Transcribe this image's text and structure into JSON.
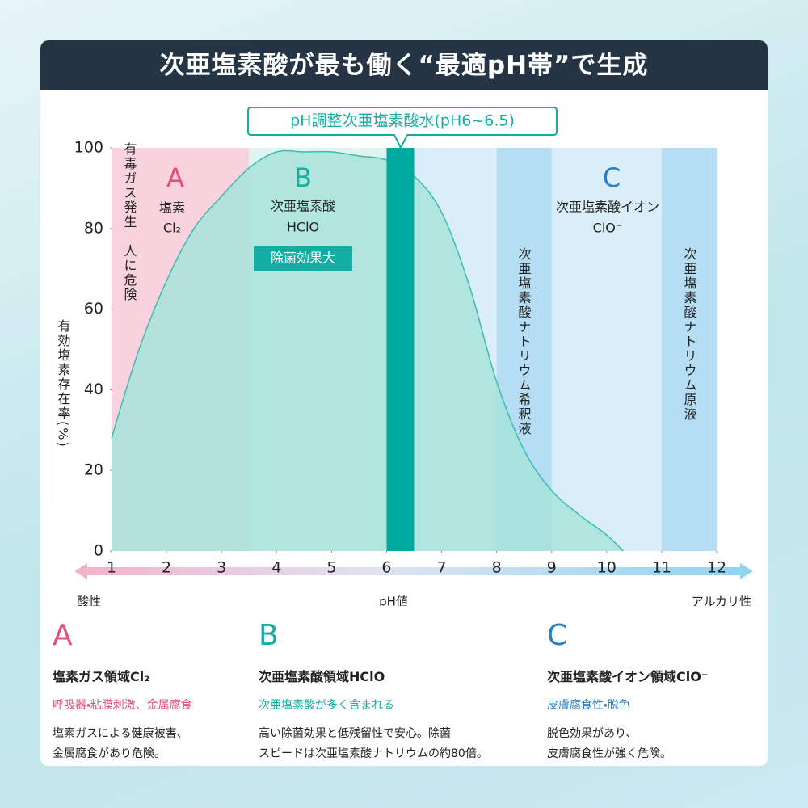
{
  "header": {
    "title": "次亜塩素酸が最も働く“最適pH帯”で生成"
  },
  "chart_data": {
    "type": "area",
    "x": [
      1,
      1.5,
      2,
      2.5,
      3,
      3.5,
      4,
      4.5,
      5,
      5.5,
      6,
      6.5,
      7,
      7.5,
      8,
      8.5,
      9,
      9.5,
      10,
      10.3
    ],
    "values": [
      28,
      50,
      67,
      80,
      88,
      95,
      99,
      99,
      99,
      98,
      97,
      93,
      84,
      66,
      42,
      25,
      15,
      9,
      4,
      0
    ],
    "color": "#a8e3dc",
    "line_color": "#3bbcb0",
    "xlim": [
      1,
      12
    ],
    "ylim": [
      0,
      100
    ],
    "xticks": [
      1,
      2,
      3,
      4,
      5,
      6,
      7,
      8,
      9,
      10,
      11,
      12
    ],
    "yticks": [
      0,
      20,
      40,
      60,
      80,
      100
    ],
    "ylabel": "有効塩素存在率(%)",
    "xlabel": "pH値",
    "x_left_label": "酸性",
    "x_right_label": "アルカリ性",
    "regions": [
      {
        "from": 1,
        "to": 3.5,
        "color": "#f8d3de"
      },
      {
        "from": 3.5,
        "to": 6.5,
        "color": "#e2f4f2"
      },
      {
        "from": 6.5,
        "to": 12,
        "color": "#d9eef9"
      },
      {
        "from": 8,
        "to": 9,
        "color": "#b5ddf3"
      },
      {
        "from": 11,
        "to": 12,
        "color": "#b5ddf3"
      },
      {
        "from": 6,
        "to": 6.5,
        "color": "#00a9a0"
      }
    ],
    "callout": "pH調整次亜塩素酸水(pH6~6.5)",
    "annotations": {
      "a_warning": "有毒ガス発生　人に危険",
      "a_letter": "A",
      "a_name": "塩素",
      "a_formula": "Cl₂",
      "b_letter": "B",
      "b_name": "次亜塩素酸",
      "b_formula": "HClO",
      "b_badge": "除菌効果大",
      "c_letter": "C",
      "c_name": "次亜塩素酸イオン",
      "c_formula": "ClO⁻",
      "dilute": "次亜塩素酸ナトリウム希釈液",
      "stock": "次亜塩素酸ナトリウム原液"
    }
  },
  "sections": [
    {
      "letter": "A",
      "title": "塩素ガス領域Cl₂",
      "subtitle": "呼吸器・粘膜刺激、金属腐食",
      "body": [
        "塩素ガスによる健康被害、",
        "金属腐食があり危険。"
      ]
    },
    {
      "letter": "B",
      "title": "次亜塩素酸領域HClO",
      "subtitle": "次亜塩素酸が多く含まれる",
      "body": [
        "高い除菌効果と低残留性で安心。除菌",
        "スピードは次亜塩素酸ナトリウムの約80倍。"
      ]
    },
    {
      "letter": "C",
      "title": "次亜塩素酸イオン領域ClO⁻",
      "subtitle": "皮膚腐食性・脱色",
      "body": [
        "脱色効果があり、",
        "皮膚腐食性が強く危険。"
      ]
    }
  ]
}
